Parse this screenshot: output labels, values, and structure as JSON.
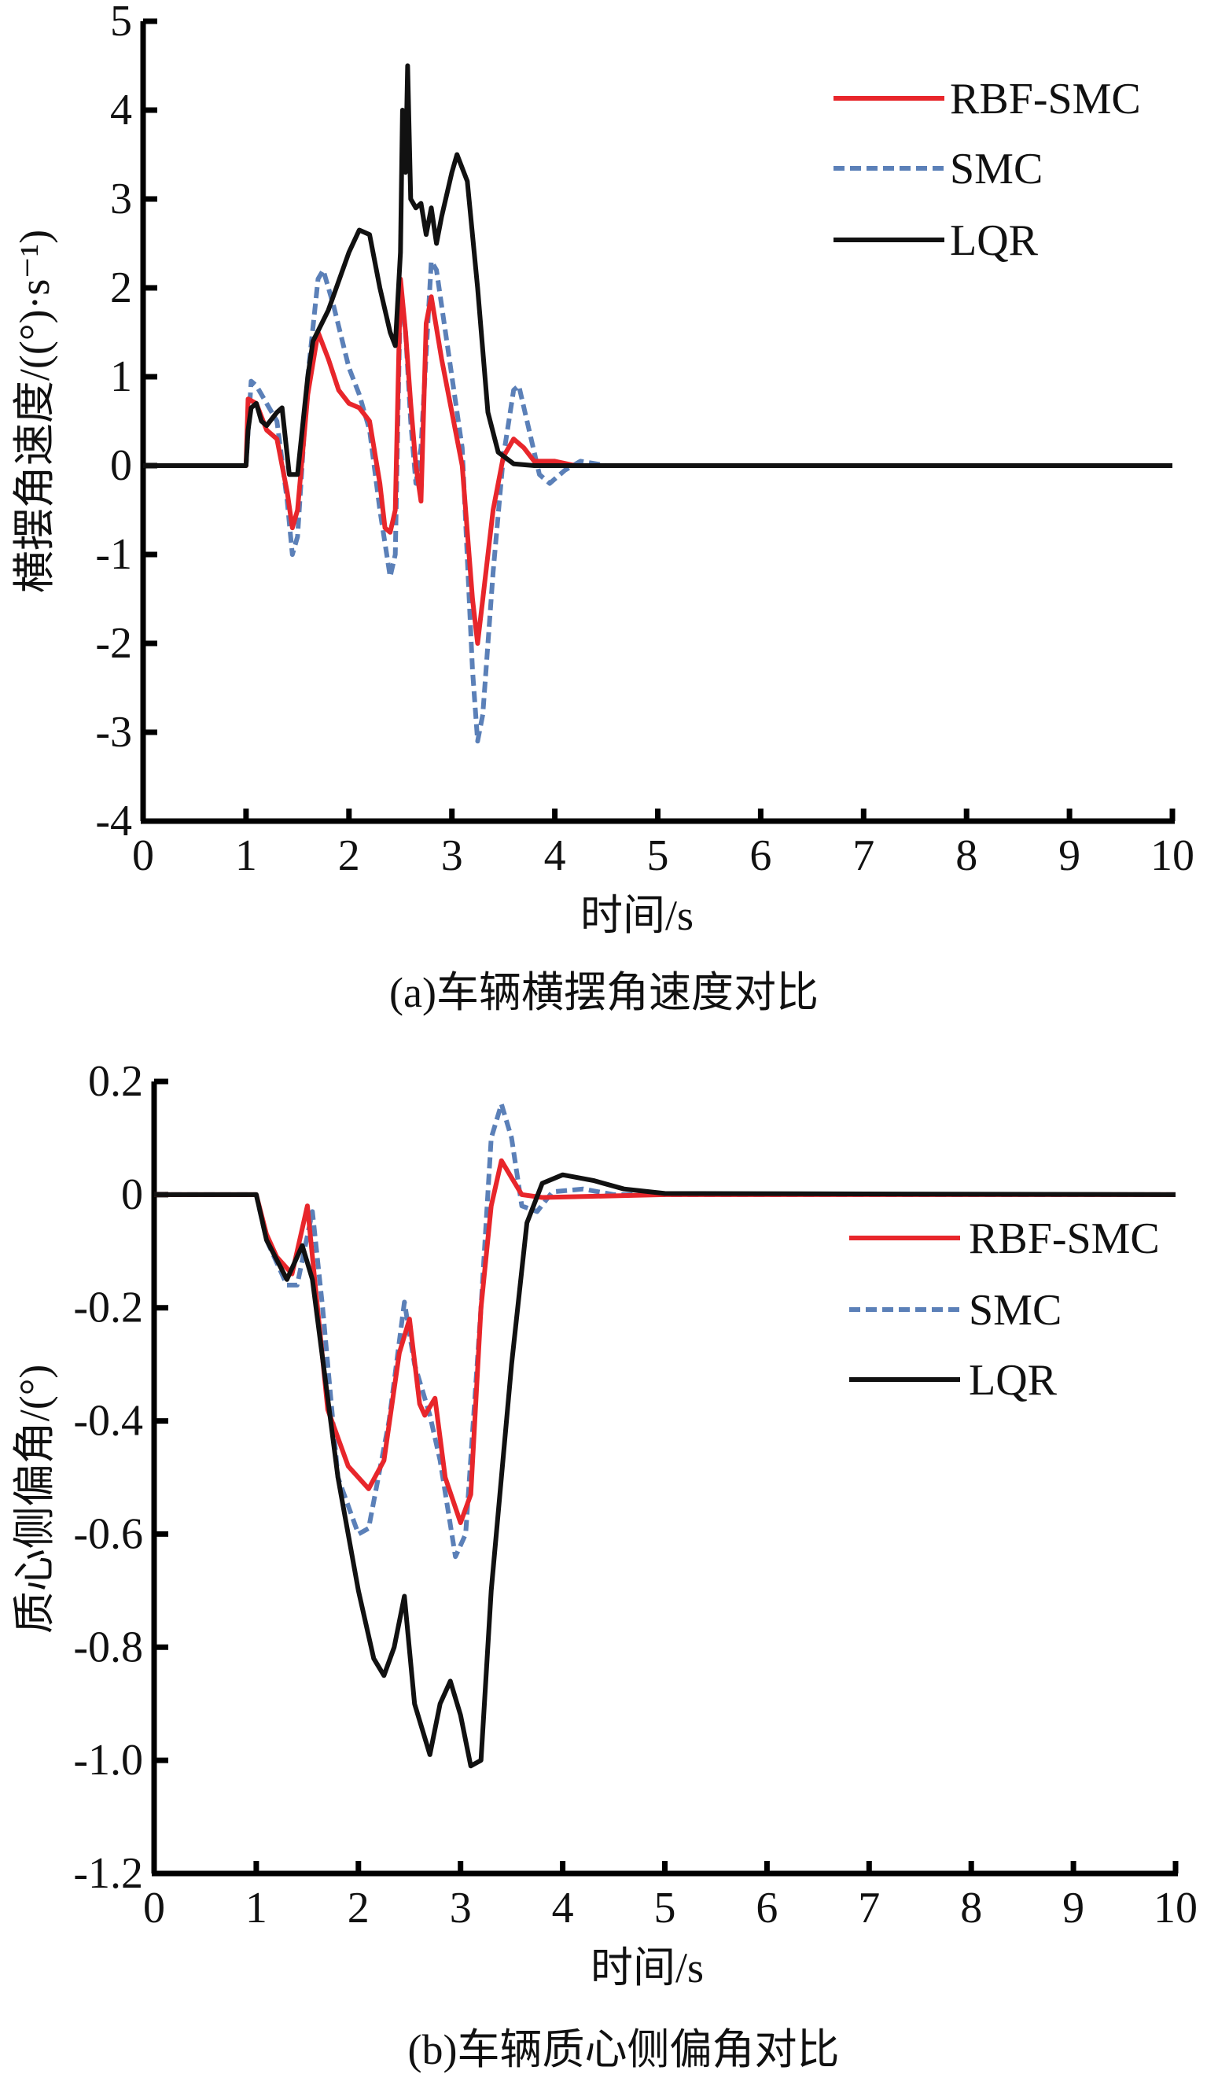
{
  "chart_data": [
    {
      "type": "line",
      "caption": "(a)车辆横摆角速度对比",
      "xlabel": "时间/s",
      "ylabel": "横摆角速度/((°)·s⁻¹)",
      "xlim": [
        0,
        10
      ],
      "ylim": [
        -4,
        5
      ],
      "xticks": [
        "0",
        "1",
        "2",
        "3",
        "4",
        "5",
        "6",
        "7",
        "8",
        "9",
        "10"
      ],
      "yticks": [
        "5",
        "4",
        "3",
        "2",
        "1",
        "0",
        "-1",
        "-2",
        "-3",
        "-4"
      ],
      "legend_position": "top-right",
      "grid": false,
      "series": [
        {
          "name": "RBF-SMC",
          "color": "#e8262b",
          "style": "solid",
          "points": [
            [
              0,
              0
            ],
            [
              1.0,
              0
            ],
            [
              1.02,
              0.75
            ],
            [
              1.1,
              0.7
            ],
            [
              1.2,
              0.4
            ],
            [
              1.3,
              0.3
            ],
            [
              1.4,
              -0.3
            ],
            [
              1.45,
              -0.7
            ],
            [
              1.5,
              -0.5
            ],
            [
              1.6,
              0.8
            ],
            [
              1.7,
              1.5
            ],
            [
              1.8,
              1.2
            ],
            [
              1.9,
              0.85
            ],
            [
              2.0,
              0.7
            ],
            [
              2.1,
              0.65
            ],
            [
              2.2,
              0.5
            ],
            [
              2.3,
              -0.2
            ],
            [
              2.35,
              -0.7
            ],
            [
              2.4,
              -0.75
            ],
            [
              2.45,
              -0.5
            ],
            [
              2.5,
              2.1
            ],
            [
              2.55,
              1.5
            ],
            [
              2.6,
              0.7
            ],
            [
              2.65,
              0.0
            ],
            [
              2.7,
              -0.4
            ],
            [
              2.75,
              1.6
            ],
            [
              2.8,
              1.9
            ],
            [
              2.9,
              1.2
            ],
            [
              3.0,
              0.6
            ],
            [
              3.1,
              0.0
            ],
            [
              3.2,
              -1.5
            ],
            [
              3.25,
              -2.0
            ],
            [
              3.3,
              -1.5
            ],
            [
              3.4,
              -0.5
            ],
            [
              3.5,
              0.1
            ],
            [
              3.6,
              0.3
            ],
            [
              3.7,
              0.2
            ],
            [
              3.8,
              0.05
            ],
            [
              4.0,
              0.05
            ],
            [
              4.2,
              0
            ],
            [
              10,
              0
            ]
          ]
        },
        {
          "name": "SMC",
          "color": "#5b80b8",
          "style": "dashed",
          "points": [
            [
              0,
              0
            ],
            [
              1.0,
              0
            ],
            [
              1.05,
              0.95
            ],
            [
              1.1,
              0.9
            ],
            [
              1.2,
              0.7
            ],
            [
              1.3,
              0.5
            ],
            [
              1.4,
              -0.4
            ],
            [
              1.45,
              -1.0
            ],
            [
              1.5,
              -0.8
            ],
            [
              1.6,
              1.0
            ],
            [
              1.7,
              2.1
            ],
            [
              1.75,
              2.2
            ],
            [
              1.85,
              1.8
            ],
            [
              2.0,
              1.1
            ],
            [
              2.1,
              0.8
            ],
            [
              2.2,
              0.4
            ],
            [
              2.3,
              -0.5
            ],
            [
              2.4,
              -1.25
            ],
            [
              2.45,
              -1.0
            ],
            [
              2.5,
              2.0
            ],
            [
              2.55,
              1.5
            ],
            [
              2.6,
              0.5
            ],
            [
              2.65,
              -0.2
            ],
            [
              2.7,
              0.2
            ],
            [
              2.8,
              2.3
            ],
            [
              2.85,
              2.2
            ],
            [
              2.95,
              1.4
            ],
            [
              3.1,
              0.2
            ],
            [
              3.2,
              -2.3
            ],
            [
              3.25,
              -3.1
            ],
            [
              3.3,
              -2.8
            ],
            [
              3.4,
              -1.2
            ],
            [
              3.5,
              0.1
            ],
            [
              3.6,
              0.85
            ],
            [
              3.65,
              0.9
            ],
            [
              3.75,
              0.4
            ],
            [
              3.85,
              -0.1
            ],
            [
              3.95,
              -0.2
            ],
            [
              4.1,
              -0.05
            ],
            [
              4.25,
              0.05
            ],
            [
              4.4,
              0.02
            ],
            [
              4.5,
              0
            ],
            [
              10,
              0
            ]
          ]
        },
        {
          "name": "LQR",
          "color": "#111111",
          "style": "solid",
          "points": [
            [
              0,
              0
            ],
            [
              1.0,
              0
            ],
            [
              1.02,
              0.4
            ],
            [
              1.05,
              0.65
            ],
            [
              1.1,
              0.7
            ],
            [
              1.15,
              0.5
            ],
            [
              1.2,
              0.45
            ],
            [
              1.3,
              0.6
            ],
            [
              1.35,
              0.65
            ],
            [
              1.42,
              -0.1
            ],
            [
              1.5,
              -0.1
            ],
            [
              1.6,
              1.0
            ],
            [
              1.65,
              1.4
            ],
            [
              1.8,
              1.75
            ],
            [
              2.0,
              2.4
            ],
            [
              2.1,
              2.65
            ],
            [
              2.2,
              2.6
            ],
            [
              2.3,
              2.0
            ],
            [
              2.4,
              1.5
            ],
            [
              2.45,
              1.35
            ],
            [
              2.5,
              2.4
            ],
            [
              2.52,
              4.0
            ],
            [
              2.55,
              3.3
            ],
            [
              2.57,
              4.5
            ],
            [
              2.6,
              3.0
            ],
            [
              2.65,
              2.9
            ],
            [
              2.7,
              2.95
            ],
            [
              2.75,
              2.6
            ],
            [
              2.8,
              2.9
            ],
            [
              2.85,
              2.5
            ],
            [
              2.9,
              2.8
            ],
            [
              3.0,
              3.3
            ],
            [
              3.05,
              3.5
            ],
            [
              3.15,
              3.2
            ],
            [
              3.25,
              2.0
            ],
            [
              3.35,
              0.6
            ],
            [
              3.45,
              0.15
            ],
            [
              3.6,
              0.02
            ],
            [
              3.8,
              0
            ],
            [
              10,
              0
            ]
          ]
        }
      ]
    },
    {
      "type": "line",
      "caption": "(b)车辆质心侧偏角对比",
      "xlabel": "时间/s",
      "ylabel": "质心侧偏角/(°)",
      "xlim": [
        0,
        10
      ],
      "ylim": [
        -1.2,
        0.2
      ],
      "xticks": [
        "0",
        "1",
        "2",
        "3",
        "4",
        "5",
        "6",
        "7",
        "8",
        "9",
        "10"
      ],
      "yticks": [
        "0.2",
        "0",
        "-0.2",
        "-0.4",
        "-0.6",
        "-0.8",
        "-1.0",
        "-1.2"
      ],
      "legend_position": "right",
      "grid": false,
      "series": [
        {
          "name": "RBF-SMC",
          "color": "#e8262b",
          "style": "solid",
          "points": [
            [
              0,
              0
            ],
            [
              1.0,
              0
            ],
            [
              1.1,
              -0.07
            ],
            [
              1.2,
              -0.11
            ],
            [
              1.35,
              -0.14
            ],
            [
              1.5,
              -0.02
            ],
            [
              1.6,
              -0.2
            ],
            [
              1.7,
              -0.38
            ],
            [
              1.9,
              -0.48
            ],
            [
              2.1,
              -0.52
            ],
            [
              2.25,
              -0.47
            ],
            [
              2.4,
              -0.28
            ],
            [
              2.5,
              -0.22
            ],
            [
              2.6,
              -0.37
            ],
            [
              2.65,
              -0.39
            ],
            [
              2.75,
              -0.36
            ],
            [
              2.85,
              -0.5
            ],
            [
              3.0,
              -0.58
            ],
            [
              3.1,
              -0.53
            ],
            [
              3.2,
              -0.2
            ],
            [
              3.3,
              -0.02
            ],
            [
              3.4,
              0.06
            ],
            [
              3.5,
              0.03
            ],
            [
              3.6,
              0
            ],
            [
              3.8,
              -0.005
            ],
            [
              5,
              0
            ],
            [
              10,
              0
            ]
          ]
        },
        {
          "name": "SMC",
          "color": "#5b80b8",
          "style": "dashed",
          "points": [
            [
              0,
              0
            ],
            [
              1.0,
              0
            ],
            [
              1.1,
              -0.08
            ],
            [
              1.3,
              -0.16
            ],
            [
              1.4,
              -0.16
            ],
            [
              1.55,
              -0.03
            ],
            [
              1.65,
              -0.2
            ],
            [
              1.8,
              -0.5
            ],
            [
              2.0,
              -0.6
            ],
            [
              2.1,
              -0.59
            ],
            [
              2.3,
              -0.4
            ],
            [
              2.45,
              -0.19
            ],
            [
              2.55,
              -0.3
            ],
            [
              2.7,
              -0.39
            ],
            [
              2.8,
              -0.47
            ],
            [
              2.95,
              -0.64
            ],
            [
              3.05,
              -0.6
            ],
            [
              3.2,
              -0.2
            ],
            [
              3.3,
              0.1
            ],
            [
              3.4,
              0.16
            ],
            [
              3.5,
              0.1
            ],
            [
              3.6,
              -0.02
            ],
            [
              3.75,
              -0.03
            ],
            [
              3.9,
              0.005
            ],
            [
              4.2,
              0.01
            ],
            [
              4.5,
              0
            ],
            [
              10,
              0
            ]
          ]
        },
        {
          "name": "LQR",
          "color": "#111111",
          "style": "solid",
          "points": [
            [
              0,
              0
            ],
            [
              1.0,
              0
            ],
            [
              1.1,
              -0.08
            ],
            [
              1.3,
              -0.15
            ],
            [
              1.45,
              -0.09
            ],
            [
              1.55,
              -0.15
            ],
            [
              1.8,
              -0.5
            ],
            [
              2.0,
              -0.7
            ],
            [
              2.15,
              -0.82
            ],
            [
              2.25,
              -0.85
            ],
            [
              2.35,
              -0.8
            ],
            [
              2.45,
              -0.71
            ],
            [
              2.55,
              -0.9
            ],
            [
              2.7,
              -0.99
            ],
            [
              2.8,
              -0.9
            ],
            [
              2.9,
              -0.86
            ],
            [
              3.0,
              -0.92
            ],
            [
              3.1,
              -1.01
            ],
            [
              3.2,
              -1.0
            ],
            [
              3.3,
              -0.7
            ],
            [
              3.5,
              -0.3
            ],
            [
              3.65,
              -0.05
            ],
            [
              3.8,
              0.02
            ],
            [
              4.0,
              0.035
            ],
            [
              4.3,
              0.025
            ],
            [
              4.6,
              0.01
            ],
            [
              5,
              0.002
            ],
            [
              10,
              0
            ]
          ]
        }
      ]
    }
  ]
}
